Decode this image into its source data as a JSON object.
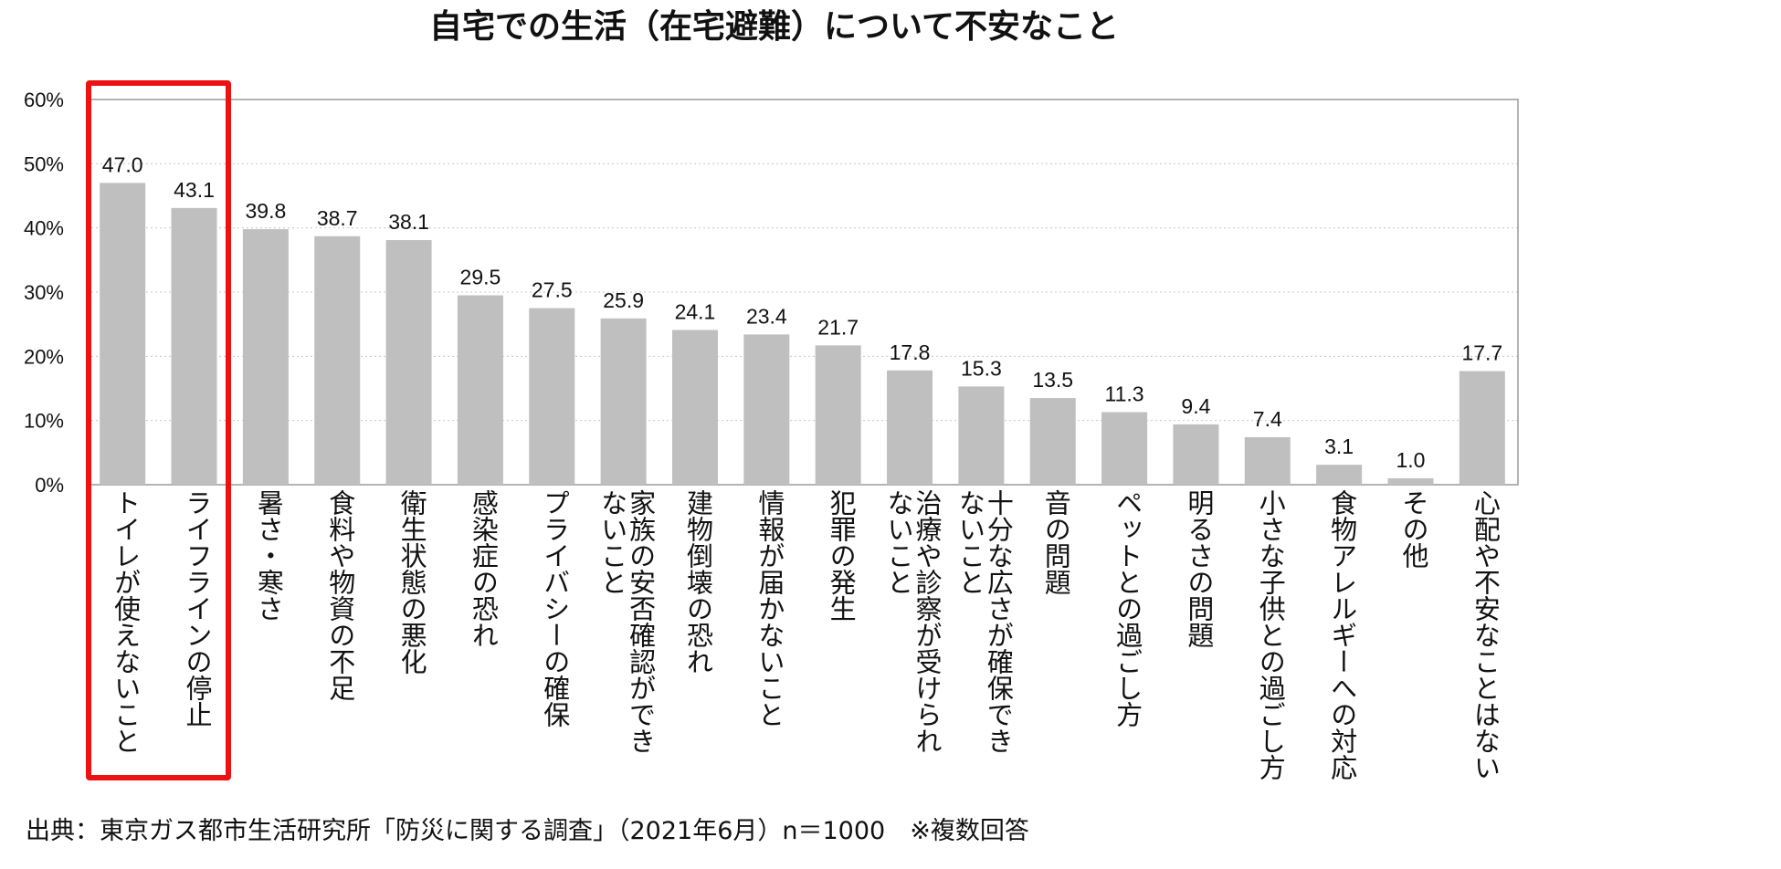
{
  "chart_data": {
    "type": "bar",
    "title": "自宅での生活（在宅避難）について不安なこと",
    "categories": [
      "トイレが使えないこと",
      "ライフラインの停止",
      "暑さ・寒さ",
      "食料や物資の不足",
      "衛生状態の悪化",
      "感染症の恐れ",
      "プライバシーの確保",
      "家族の安否確認ができ\nないこと",
      "建物倒壊の恐れ",
      "情報が届かないこと",
      "犯罪の発生",
      "治療や診察が受けられ\nないこと",
      "十分な広さが確保でき\nないこと",
      "音の問題",
      "ペットとの過ごし方",
      "明るさの問題",
      "小さな子供との過ごし方",
      "食物アレルギーへの対応",
      "その他",
      "心配や不安なことはない"
    ],
    "values": [
      47.0,
      43.1,
      39.8,
      38.7,
      38.1,
      29.5,
      27.5,
      25.9,
      24.1,
      23.4,
      21.7,
      17.8,
      15.3,
      13.5,
      11.3,
      9.4,
      7.4,
      3.1,
      1.0,
      17.7
    ],
    "value_labels": [
      "47.0",
      "43.1",
      "39.8",
      "38.7",
      "38.1",
      "29.5",
      "27.5",
      "25.9",
      "24.1",
      "23.4",
      "21.7",
      "17.8",
      "15.3",
      "13.5",
      "11.3",
      "9.4",
      "7.4",
      "3.1",
      "1.0",
      "17.7"
    ],
    "y_ticks": [
      "0%",
      "10%",
      "20%",
      "30%",
      "40%",
      "50%",
      "60%"
    ],
    "ylim": [
      0,
      60
    ],
    "grid": "horizontal dotted",
    "bar_color": "#bfbfbf",
    "highlight": {
      "categories": [
        "トイレが使えないこと",
        "ライフラインの停止"
      ],
      "color": "#ee1111"
    }
  },
  "source_note": "出典：東京ガス都市生活研究所「防災に関する調査」（2021年6月）n＝1000　※複数回答"
}
